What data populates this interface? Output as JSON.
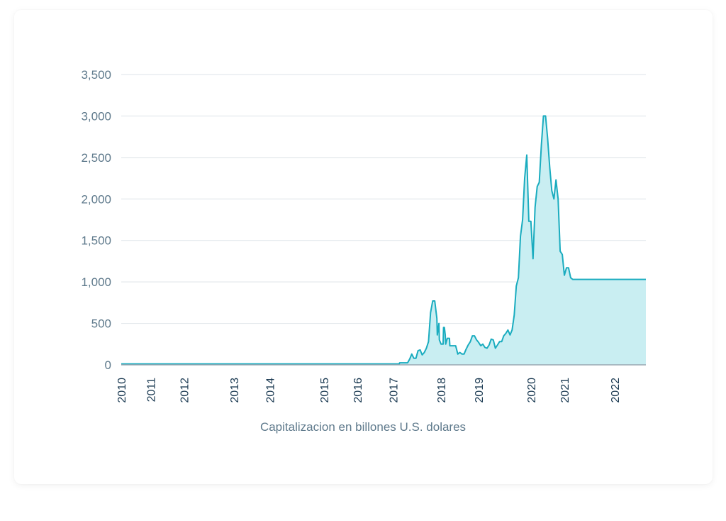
{
  "chart_data": {
    "type": "area",
    "title": "",
    "xlabel": "Capitalizacion en billones U.S. dolares",
    "ylabel": "",
    "ylim": [
      0,
      3500
    ],
    "xlim": [
      2010.0,
      2022.55
    ],
    "yticks": [
      {
        "value": 0,
        "label": "0"
      },
      {
        "value": 500,
        "label": "500"
      },
      {
        "value": 1000,
        "label": "1,000"
      },
      {
        "value": 1500,
        "label": "1,500"
      },
      {
        "value": 2000,
        "label": "2,000"
      },
      {
        "value": 2500,
        "label": "2,500"
      },
      {
        "value": 3000,
        "label": "3,000"
      },
      {
        "value": 3500,
        "label": "3,500"
      }
    ],
    "xticks": [
      {
        "value": 2010.0,
        "label": "2010"
      },
      {
        "value": 2010.7,
        "label": "2011"
      },
      {
        "value": 2011.5,
        "label": "2012"
      },
      {
        "value": 2012.7,
        "label": "2013"
      },
      {
        "value": 2013.55,
        "label": "2014"
      },
      {
        "value": 2014.85,
        "label": "2015"
      },
      {
        "value": 2015.65,
        "label": "2016"
      },
      {
        "value": 2016.5,
        "label": "2017"
      },
      {
        "value": 2017.65,
        "label": "2018"
      },
      {
        "value": 2018.55,
        "label": "2019"
      },
      {
        "value": 2019.8,
        "label": "2020"
      },
      {
        "value": 2020.6,
        "label": "2021"
      },
      {
        "value": 2021.8,
        "label": "2022"
      }
    ],
    "grid": true,
    "colors": {
      "line": "#1aacbf",
      "fill": "#c9eef2",
      "grid": "#dde3e8",
      "axis": "#9aa7b1"
    },
    "series": [
      {
        "x": [
          2010.0,
          2016.65,
          2016.66,
          2016.85,
          2016.9,
          2016.95,
          2017.0,
          2017.05,
          2017.1,
          2017.15,
          2017.2,
          2017.25,
          2017.3,
          2017.35,
          2017.4,
          2017.45,
          2017.5,
          2017.55,
          2017.56,
          2017.6,
          2017.61,
          2017.65,
          2017.7,
          2017.71,
          2017.73,
          2017.75,
          2017.76,
          2017.8,
          2017.85,
          2017.86,
          2017.9,
          2017.92,
          2017.95,
          2018.0,
          2018.05,
          2018.1,
          2018.15,
          2018.2,
          2018.25,
          2018.3,
          2018.35,
          2018.4,
          2018.45,
          2018.5,
          2018.55,
          2018.6,
          2018.65,
          2018.7,
          2018.75,
          2018.8,
          2018.85,
          2018.9,
          2018.95,
          2019.0,
          2019.05,
          2019.1,
          2019.15,
          2019.2,
          2019.25,
          2019.3,
          2019.35,
          2019.4,
          2019.45,
          2019.5,
          2019.55,
          2019.6,
          2019.65,
          2019.7,
          2019.75,
          2019.8,
          2019.85,
          2019.9,
          2019.95,
          2020.0,
          2020.05,
          2020.1,
          2020.15,
          2020.2,
          2020.25,
          2020.3,
          2020.35,
          2020.4,
          2020.45,
          2020.5,
          2020.55,
          2020.6,
          2020.65,
          2020.7,
          2020.75,
          2020.8,
          2020.85,
          2020.9,
          2020.95,
          2021.0,
          2021.05,
          2021.1,
          2021.15,
          2021.2,
          2021.25,
          2021.3,
          2021.35,
          2021.4,
          2021.45,
          2021.5,
          2021.55,
          2021.6,
          2021.65,
          2021.7,
          2021.75,
          2021.8,
          2021.85,
          2021.9,
          2021.95,
          2022.0,
          2022.05,
          2022.1,
          2022.15,
          2022.2,
          2022.25,
          2022.3,
          2022.35,
          2022.4,
          2022.45,
          2022.5,
          2022.55
        ],
        "y": [
          10,
          10,
          25,
          25,
          70,
          130,
          80,
          80,
          170,
          180,
          120,
          150,
          200,
          280,
          630,
          770,
          770,
          560,
          360,
          500,
          300,
          250,
          250,
          450,
          450,
          360,
          250,
          320,
          320,
          230,
          230,
          230,
          230,
          230,
          130,
          150,
          130,
          130,
          190,
          240,
          280,
          350,
          350,
          300,
          270,
          230,
          250,
          210,
          200,
          240,
          310,
          300,
          200,
          240,
          280,
          280,
          350,
          380,
          420,
          360,
          420,
          600,
          950,
          1050,
          1550,
          1750,
          2250,
          2530,
          1730,
          1730,
          1280,
          1900,
          2150,
          2200,
          2650,
          3000,
          3000,
          2730,
          2380,
          2100,
          2000,
          2230,
          2000,
          1370,
          1330,
          1080,
          1170,
          1170,
          1050,
          1030,
          1030,
          1030,
          1030,
          1030,
          1030,
          1030,
          1030,
          1030,
          1030,
          1030,
          1030,
          1030,
          1030,
          1030,
          1030,
          1030,
          1030,
          1030,
          1030,
          1030,
          1030,
          1030,
          1030,
          1030,
          1030,
          1030,
          1030,
          1030,
          1030,
          1030,
          1030,
          1030,
          1030,
          1030,
          1030
        ]
      }
    ]
  }
}
